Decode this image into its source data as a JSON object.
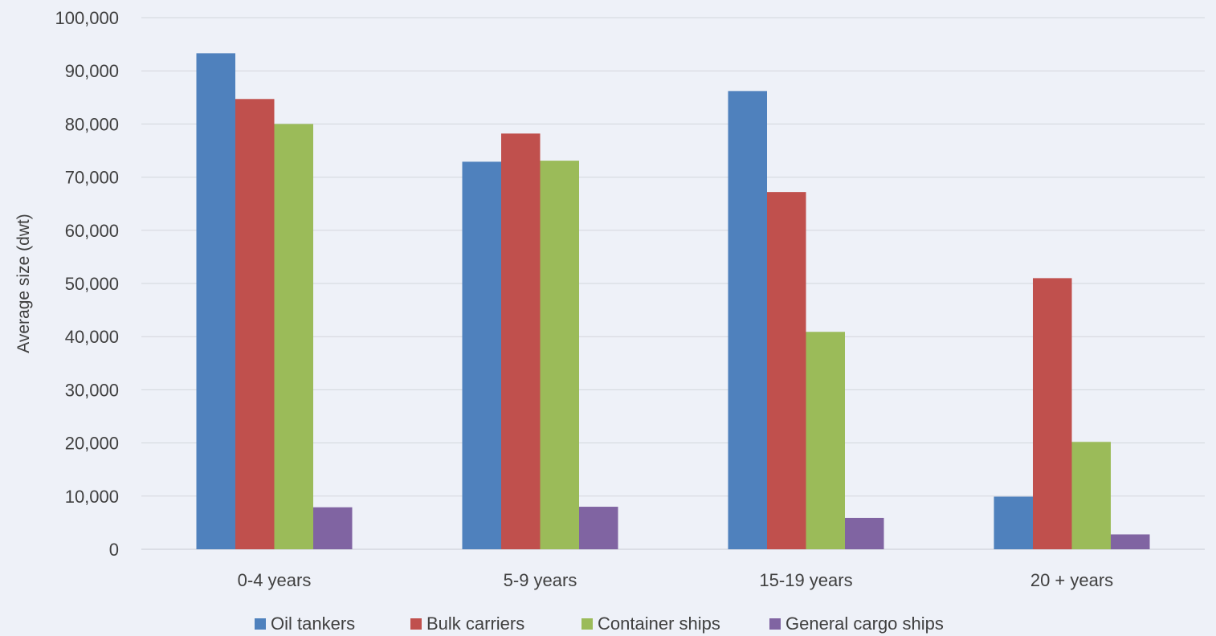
{
  "chart_data": {
    "type": "bar",
    "ylabel": "Average size (dwt)",
    "xlabel": "",
    "title": "",
    "ylim": [
      0,
      100000
    ],
    "yticks": [
      0,
      10000,
      20000,
      30000,
      40000,
      50000,
      60000,
      70000,
      80000,
      90000,
      100000
    ],
    "ytick_labels": [
      "0",
      "10,000",
      "20,000",
      "30,000",
      "40,000",
      "50,000",
      "60,000",
      "70,000",
      "80,000",
      "90,000",
      "100,000"
    ],
    "categories": [
      "0-4 years",
      "5-9 years",
      "15-19 years",
      "20 + years"
    ],
    "series": [
      {
        "name": "Oil tankers",
        "color": "#4f81bd",
        "values": [
          93300,
          72900,
          86200,
          9900
        ]
      },
      {
        "name": "Bulk carriers",
        "color": "#c0504d",
        "values": [
          84700,
          78200,
          67200,
          51000
        ]
      },
      {
        "name": "Container ships",
        "color": "#9bbb59",
        "values": [
          80000,
          73100,
          40900,
          20200
        ]
      },
      {
        "name": "General cargo ships",
        "color": "#8064a2",
        "values": [
          7900,
          8000,
          5900,
          2800
        ]
      }
    ],
    "grid": true,
    "legend_position": "bottom"
  }
}
